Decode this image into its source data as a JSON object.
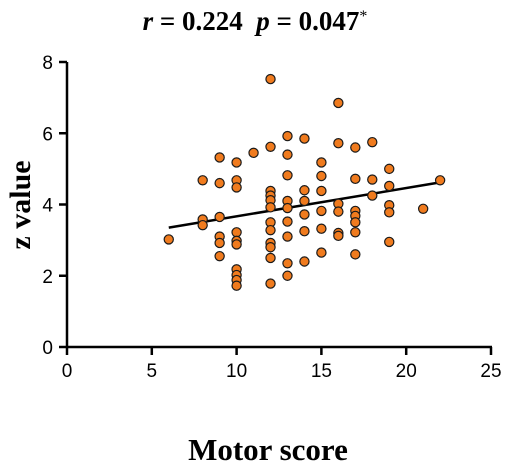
{
  "chart_data": {
    "type": "scatter",
    "title_parts": {
      "r_symbol": "r",
      "r_eq": " = 0.224  ",
      "p_symbol": "p",
      "p_eq": " = 0.047",
      "sig_mark": "*"
    },
    "xlabel": "Motor score",
    "ylabel": "z value",
    "xlim": [
      0,
      25
    ],
    "ylim": [
      0,
      8
    ],
    "xticks": [
      0,
      5,
      10,
      15,
      20,
      25
    ],
    "yticks": [
      0,
      2,
      4,
      6,
      8
    ],
    "grid": false,
    "marker_color": "#F07B1E",
    "marker_edge_color": "#1a1a1a",
    "line_color": "#000000",
    "regression_line": {
      "x": [
        6,
        22
      ],
      "y": [
        3.35,
        4.62
      ]
    },
    "points": [
      {
        "x": 6,
        "y": 3.02
      },
      {
        "x": 8,
        "y": 4.68
      },
      {
        "x": 8,
        "y": 3.58
      },
      {
        "x": 8,
        "y": 3.42
      },
      {
        "x": 9,
        "y": 5.32
      },
      {
        "x": 9,
        "y": 4.6
      },
      {
        "x": 9,
        "y": 3.65
      },
      {
        "x": 9,
        "y": 3.1
      },
      {
        "x": 9,
        "y": 2.92
      },
      {
        "x": 9,
        "y": 2.55
      },
      {
        "x": 10,
        "y": 5.18
      },
      {
        "x": 10,
        "y": 4.68
      },
      {
        "x": 10,
        "y": 4.48
      },
      {
        "x": 10,
        "y": 3.22
      },
      {
        "x": 10,
        "y": 2.98
      },
      {
        "x": 10,
        "y": 2.88
      },
      {
        "x": 10,
        "y": 2.18
      },
      {
        "x": 10,
        "y": 2.02
      },
      {
        "x": 10,
        "y": 1.88
      },
      {
        "x": 10,
        "y": 1.72
      },
      {
        "x": 11,
        "y": 5.45
      },
      {
        "x": 12,
        "y": 7.52
      },
      {
        "x": 12,
        "y": 5.62
      },
      {
        "x": 12,
        "y": 4.38
      },
      {
        "x": 12,
        "y": 4.25
      },
      {
        "x": 12,
        "y": 4.12
      },
      {
        "x": 12,
        "y": 3.92
      },
      {
        "x": 12,
        "y": 3.5
      },
      {
        "x": 12,
        "y": 3.28
      },
      {
        "x": 12,
        "y": 2.92
      },
      {
        "x": 12,
        "y": 2.8
      },
      {
        "x": 12,
        "y": 2.5
      },
      {
        "x": 12,
        "y": 1.78
      },
      {
        "x": 13,
        "y": 5.92
      },
      {
        "x": 13,
        "y": 5.4
      },
      {
        "x": 13,
        "y": 4.82
      },
      {
        "x": 13,
        "y": 4.1
      },
      {
        "x": 13,
        "y": 3.9
      },
      {
        "x": 13,
        "y": 3.52
      },
      {
        "x": 13,
        "y": 3.1
      },
      {
        "x": 13,
        "y": 2.35
      },
      {
        "x": 13,
        "y": 2.0
      },
      {
        "x": 14,
        "y": 5.85
      },
      {
        "x": 14,
        "y": 4.4
      },
      {
        "x": 14,
        "y": 4.1
      },
      {
        "x": 14,
        "y": 3.72
      },
      {
        "x": 14,
        "y": 3.25
      },
      {
        "x": 14,
        "y": 2.4
      },
      {
        "x": 15,
        "y": 5.18
      },
      {
        "x": 15,
        "y": 4.8
      },
      {
        "x": 15,
        "y": 4.38
      },
      {
        "x": 15,
        "y": 3.82
      },
      {
        "x": 15,
        "y": 3.32
      },
      {
        "x": 15,
        "y": 2.65
      },
      {
        "x": 16,
        "y": 6.85
      },
      {
        "x": 16,
        "y": 5.72
      },
      {
        "x": 16,
        "y": 4.02
      },
      {
        "x": 16,
        "y": 3.8
      },
      {
        "x": 16,
        "y": 3.2
      },
      {
        "x": 16,
        "y": 3.12
      },
      {
        "x": 17,
        "y": 5.6
      },
      {
        "x": 17,
        "y": 4.72
      },
      {
        "x": 17,
        "y": 3.82
      },
      {
        "x": 17,
        "y": 3.68
      },
      {
        "x": 17,
        "y": 3.5
      },
      {
        "x": 17,
        "y": 3.22
      },
      {
        "x": 17,
        "y": 2.6
      },
      {
        "x": 18,
        "y": 5.75
      },
      {
        "x": 18,
        "y": 4.7
      },
      {
        "x": 18,
        "y": 4.25
      },
      {
        "x": 19,
        "y": 5.0
      },
      {
        "x": 19,
        "y": 4.52
      },
      {
        "x": 19,
        "y": 3.98
      },
      {
        "x": 19,
        "y": 3.78
      },
      {
        "x": 19,
        "y": 2.95
      },
      {
        "x": 21,
        "y": 3.88
      },
      {
        "x": 22,
        "y": 4.68
      }
    ]
  }
}
